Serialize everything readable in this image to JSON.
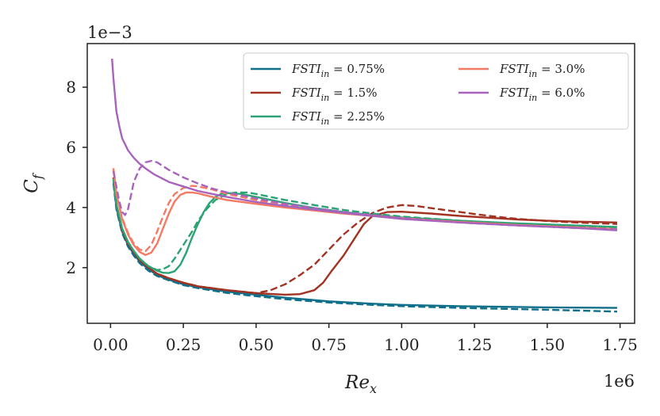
{
  "chart_data": {
    "type": "line",
    "xlabel": "Re_x",
    "ylabel": "C_f",
    "x_multiplier_label": "1e6",
    "y_multiplier_label": "1e−3",
    "xlim": [
      -0.08,
      1.8
    ],
    "ylim": [
      0.15,
      9.45
    ],
    "x_ticks": [
      0.0,
      0.25,
      0.5,
      0.75,
      1.0,
      1.25,
      1.5,
      1.75
    ],
    "x_tick_labels": [
      "0.00",
      "0.25",
      "0.50",
      "0.75",
      "1.00",
      "1.25",
      "1.50",
      "1.75"
    ],
    "y_ticks": [
      2,
      4,
      6,
      8
    ],
    "y_tick_labels": [
      "2",
      "4",
      "6",
      "8"
    ],
    "grid": false,
    "legend_position": "top-right",
    "legend_columns": 2,
    "series": [
      {
        "name": "FSTI_in = 0.75%",
        "legend_main": "FSTI",
        "legend_sub": "in",
        "legend_value": " = 0.75%",
        "color": "#106f8a",
        "solid": [
          [
            0.01,
            4.9
          ],
          [
            0.02,
            4.0
          ],
          [
            0.04,
            3.2
          ],
          [
            0.06,
            2.75
          ],
          [
            0.08,
            2.45
          ],
          [
            0.1,
            2.2
          ],
          [
            0.13,
            1.95
          ],
          [
            0.16,
            1.75
          ],
          [
            0.2,
            1.6
          ],
          [
            0.25,
            1.45
          ],
          [
            0.3,
            1.35
          ],
          [
            0.4,
            1.2
          ],
          [
            0.5,
            1.1
          ],
          [
            0.6,
            1.0
          ],
          [
            0.75,
            0.88
          ],
          [
            0.9,
            0.8
          ],
          [
            1.0,
            0.76
          ],
          [
            1.2,
            0.72
          ],
          [
            1.5,
            0.68
          ],
          [
            1.74,
            0.66
          ]
        ],
        "dashed": [
          [
            0.01,
            4.8
          ],
          [
            0.02,
            3.95
          ],
          [
            0.04,
            3.15
          ],
          [
            0.06,
            2.7
          ],
          [
            0.08,
            2.4
          ],
          [
            0.1,
            2.15
          ],
          [
            0.13,
            1.9
          ],
          [
            0.16,
            1.72
          ],
          [
            0.2,
            1.58
          ],
          [
            0.25,
            1.42
          ],
          [
            0.3,
            1.32
          ],
          [
            0.4,
            1.16
          ],
          [
            0.5,
            1.05
          ],
          [
            0.6,
            0.95
          ],
          [
            0.75,
            0.84
          ],
          [
            0.9,
            0.76
          ],
          [
            1.0,
            0.72
          ],
          [
            1.2,
            0.66
          ],
          [
            1.5,
            0.6
          ],
          [
            1.74,
            0.54
          ]
        ]
      },
      {
        "name": "FSTI_in = 1.5%",
        "legend_main": "FSTI",
        "legend_sub": "in",
        "legend_value": " = 1.5%",
        "color": "#a23222",
        "solid": [
          [
            0.01,
            5.0
          ],
          [
            0.02,
            4.1
          ],
          [
            0.04,
            3.25
          ],
          [
            0.06,
            2.8
          ],
          [
            0.08,
            2.5
          ],
          [
            0.1,
            2.25
          ],
          [
            0.13,
            2.0
          ],
          [
            0.16,
            1.8
          ],
          [
            0.2,
            1.65
          ],
          [
            0.25,
            1.5
          ],
          [
            0.3,
            1.38
          ],
          [
            0.4,
            1.25
          ],
          [
            0.5,
            1.15
          ],
          [
            0.6,
            1.1
          ],
          [
            0.65,
            1.12
          ],
          [
            0.7,
            1.25
          ],
          [
            0.73,
            1.5
          ],
          [
            0.76,
            1.9
          ],
          [
            0.8,
            2.4
          ],
          [
            0.84,
            3.0
          ],
          [
            0.87,
            3.45
          ],
          [
            0.9,
            3.72
          ],
          [
            0.95,
            3.85
          ],
          [
            1.0,
            3.86
          ],
          [
            1.1,
            3.8
          ],
          [
            1.2,
            3.72
          ],
          [
            1.3,
            3.66
          ],
          [
            1.4,
            3.6
          ],
          [
            1.5,
            3.56
          ],
          [
            1.6,
            3.53
          ],
          [
            1.74,
            3.5
          ]
        ],
        "dashed": [
          [
            0.01,
            5.0
          ],
          [
            0.02,
            4.1
          ],
          [
            0.04,
            3.25
          ],
          [
            0.06,
            2.8
          ],
          [
            0.08,
            2.5
          ],
          [
            0.1,
            2.25
          ],
          [
            0.13,
            2.0
          ],
          [
            0.16,
            1.8
          ],
          [
            0.2,
            1.65
          ],
          [
            0.25,
            1.5
          ],
          [
            0.3,
            1.38
          ],
          [
            0.4,
            1.25
          ],
          [
            0.45,
            1.2
          ],
          [
            0.5,
            1.15
          ],
          [
            0.55,
            1.25
          ],
          [
            0.6,
            1.45
          ],
          [
            0.65,
            1.75
          ],
          [
            0.7,
            2.1
          ],
          [
            0.75,
            2.6
          ],
          [
            0.8,
            3.1
          ],
          [
            0.85,
            3.5
          ],
          [
            0.9,
            3.82
          ],
          [
            0.95,
            4.0
          ],
          [
            1.0,
            4.08
          ],
          [
            1.05,
            4.05
          ],
          [
            1.1,
            3.98
          ],
          [
            1.2,
            3.85
          ],
          [
            1.3,
            3.72
          ],
          [
            1.4,
            3.62
          ],
          [
            1.5,
            3.55
          ],
          [
            1.6,
            3.5
          ],
          [
            1.74,
            3.45
          ]
        ]
      },
      {
        "name": "FSTI_in = 2.25%",
        "legend_main": "FSTI",
        "legend_sub": "in",
        "legend_value": " = 2.25%",
        "color": "#2ba374",
        "solid": [
          [
            0.01,
            4.95
          ],
          [
            0.02,
            4.1
          ],
          [
            0.04,
            3.3
          ],
          [
            0.06,
            2.85
          ],
          [
            0.08,
            2.55
          ],
          [
            0.1,
            2.3
          ],
          [
            0.13,
            2.05
          ],
          [
            0.16,
            1.9
          ],
          [
            0.18,
            1.83
          ],
          [
            0.2,
            1.82
          ],
          [
            0.22,
            1.88
          ],
          [
            0.24,
            2.1
          ],
          [
            0.26,
            2.5
          ],
          [
            0.28,
            3.0
          ],
          [
            0.3,
            3.45
          ],
          [
            0.32,
            3.85
          ],
          [
            0.34,
            4.15
          ],
          [
            0.36,
            4.35
          ],
          [
            0.38,
            4.45
          ],
          [
            0.4,
            4.48
          ],
          [
            0.45,
            4.45
          ],
          [
            0.5,
            4.35
          ],
          [
            0.6,
            4.15
          ],
          [
            0.7,
            3.98
          ],
          [
            0.8,
            3.85
          ],
          [
            0.9,
            3.75
          ],
          [
            1.0,
            3.67
          ],
          [
            1.2,
            3.56
          ],
          [
            1.4,
            3.47
          ],
          [
            1.6,
            3.4
          ],
          [
            1.74,
            3.35
          ]
        ],
        "dashed": [
          [
            0.01,
            4.95
          ],
          [
            0.02,
            4.1
          ],
          [
            0.04,
            3.3
          ],
          [
            0.06,
            2.85
          ],
          [
            0.08,
            2.55
          ],
          [
            0.1,
            2.3
          ],
          [
            0.13,
            2.05
          ],
          [
            0.16,
            1.92
          ],
          [
            0.18,
            1.95
          ],
          [
            0.2,
            2.05
          ],
          [
            0.22,
            2.3
          ],
          [
            0.25,
            2.75
          ],
          [
            0.28,
            3.2
          ],
          [
            0.3,
            3.55
          ],
          [
            0.33,
            3.95
          ],
          [
            0.36,
            4.25
          ],
          [
            0.4,
            4.45
          ],
          [
            0.43,
            4.5
          ],
          [
            0.47,
            4.5
          ],
          [
            0.5,
            4.45
          ],
          [
            0.6,
            4.25
          ],
          [
            0.7,
            4.08
          ],
          [
            0.8,
            3.92
          ],
          [
            0.9,
            3.8
          ],
          [
            1.0,
            3.7
          ],
          [
            1.2,
            3.56
          ],
          [
            1.4,
            3.45
          ],
          [
            1.6,
            3.37
          ],
          [
            1.74,
            3.3
          ]
        ]
      },
      {
        "name": "FSTI_in = 3.0%",
        "legend_main": "FSTI",
        "legend_sub": "in",
        "legend_value": " = 3.0%",
        "color": "#f47a63",
        "solid": [
          [
            0.01,
            5.3
          ],
          [
            0.02,
            4.45
          ],
          [
            0.04,
            3.6
          ],
          [
            0.06,
            3.1
          ],
          [
            0.08,
            2.75
          ],
          [
            0.1,
            2.52
          ],
          [
            0.12,
            2.42
          ],
          [
            0.14,
            2.5
          ],
          [
            0.16,
            2.8
          ],
          [
            0.18,
            3.3
          ],
          [
            0.2,
            3.8
          ],
          [
            0.22,
            4.2
          ],
          [
            0.24,
            4.42
          ],
          [
            0.26,
            4.5
          ],
          [
            0.28,
            4.5
          ],
          [
            0.3,
            4.47
          ],
          [
            0.35,
            4.35
          ],
          [
            0.4,
            4.25
          ],
          [
            0.5,
            4.12
          ],
          [
            0.6,
            4.0
          ],
          [
            0.7,
            3.9
          ],
          [
            0.8,
            3.8
          ],
          [
            0.9,
            3.72
          ],
          [
            1.0,
            3.64
          ],
          [
            1.2,
            3.52
          ],
          [
            1.4,
            3.42
          ],
          [
            1.6,
            3.34
          ],
          [
            1.74,
            3.28
          ]
        ],
        "dashed": [
          [
            0.01,
            5.3
          ],
          [
            0.02,
            4.45
          ],
          [
            0.04,
            3.65
          ],
          [
            0.06,
            3.15
          ],
          [
            0.08,
            2.8
          ],
          [
            0.1,
            2.6
          ],
          [
            0.12,
            2.55
          ],
          [
            0.14,
            2.75
          ],
          [
            0.16,
            3.2
          ],
          [
            0.18,
            3.7
          ],
          [
            0.2,
            4.15
          ],
          [
            0.22,
            4.45
          ],
          [
            0.25,
            4.65
          ],
          [
            0.28,
            4.72
          ],
          [
            0.3,
            4.7
          ],
          [
            0.35,
            4.6
          ],
          [
            0.4,
            4.45
          ],
          [
            0.5,
            4.25
          ],
          [
            0.6,
            4.07
          ],
          [
            0.7,
            3.93
          ],
          [
            0.8,
            3.82
          ],
          [
            0.9,
            3.73
          ],
          [
            1.0,
            3.65
          ],
          [
            1.2,
            3.5
          ],
          [
            1.4,
            3.4
          ],
          [
            1.6,
            3.32
          ],
          [
            1.74,
            3.25
          ]
        ]
      },
      {
        "name": "FSTI_in = 6.0%",
        "legend_main": "FSTI",
        "legend_sub": "in",
        "legend_value": " = 6.0%",
        "color": "#a864bd",
        "solid": [
          [
            0.005,
            8.95
          ],
          [
            0.01,
            8.3
          ],
          [
            0.02,
            7.2
          ],
          [
            0.03,
            6.7
          ],
          [
            0.04,
            6.3
          ],
          [
            0.06,
            5.9
          ],
          [
            0.08,
            5.65
          ],
          [
            0.1,
            5.45
          ],
          [
            0.12,
            5.3
          ],
          [
            0.15,
            5.1
          ],
          [
            0.2,
            4.85
          ],
          [
            0.25,
            4.7
          ],
          [
            0.3,
            4.55
          ],
          [
            0.35,
            4.45
          ],
          [
            0.4,
            4.35
          ],
          [
            0.5,
            4.18
          ],
          [
            0.6,
            4.05
          ],
          [
            0.7,
            3.93
          ],
          [
            0.8,
            3.82
          ],
          [
            0.9,
            3.72
          ],
          [
            1.0,
            3.62
          ],
          [
            1.2,
            3.5
          ],
          [
            1.4,
            3.4
          ],
          [
            1.6,
            3.32
          ],
          [
            1.74,
            3.24
          ]
        ],
        "dashed": [
          [
            0.01,
            5.2
          ],
          [
            0.02,
            4.7
          ],
          [
            0.03,
            4.2
          ],
          [
            0.04,
            3.85
          ],
          [
            0.05,
            3.75
          ],
          [
            0.06,
            3.95
          ],
          [
            0.07,
            4.4
          ],
          [
            0.08,
            4.85
          ],
          [
            0.1,
            5.3
          ],
          [
            0.12,
            5.5
          ],
          [
            0.14,
            5.55
          ],
          [
            0.16,
            5.5
          ],
          [
            0.2,
            5.25
          ],
          [
            0.25,
            5.0
          ],
          [
            0.3,
            4.8
          ],
          [
            0.35,
            4.63
          ],
          [
            0.4,
            4.5
          ],
          [
            0.5,
            4.3
          ],
          [
            0.6,
            4.12
          ],
          [
            0.7,
            3.98
          ],
          [
            0.8,
            3.85
          ],
          [
            0.9,
            3.75
          ],
          [
            1.0,
            3.65
          ],
          [
            1.2,
            3.5
          ],
          [
            1.4,
            3.4
          ],
          [
            1.6,
            3.32
          ],
          [
            1.74,
            3.27
          ]
        ]
      }
    ]
  }
}
